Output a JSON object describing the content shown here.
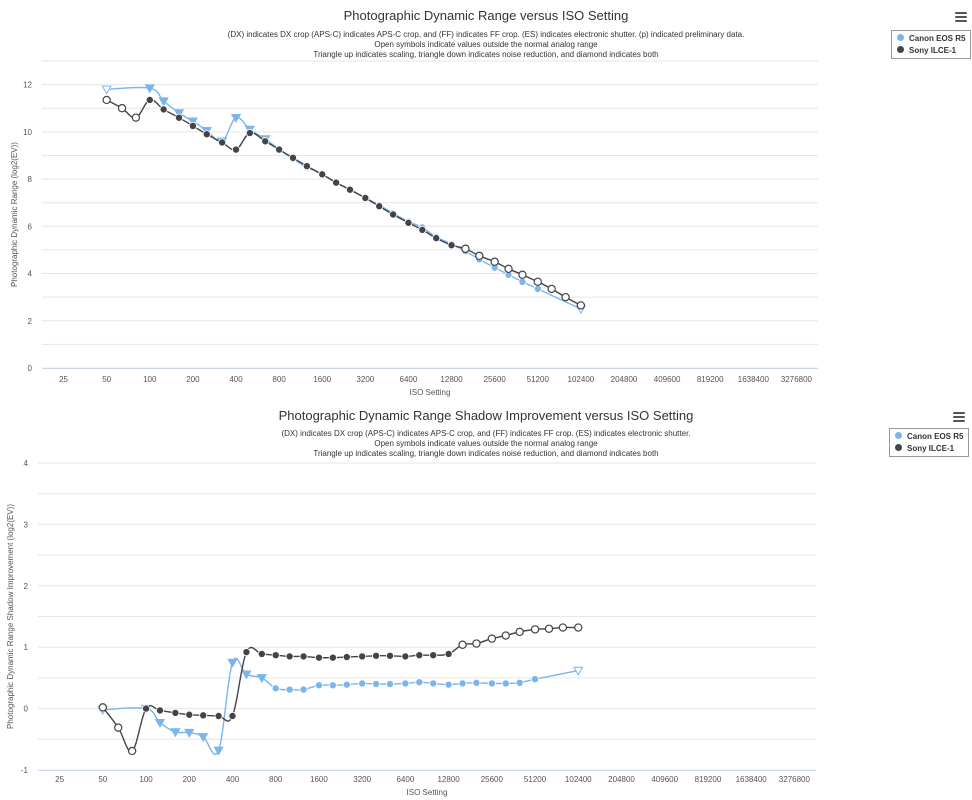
{
  "colors": {
    "canon": "#7cb5ec",
    "sony": "#434348",
    "grid": "#e6e6e6",
    "axis": "#ccd6eb"
  },
  "menu_icon": "hamburger-menu-icon",
  "chart_data": [
    {
      "type": "line",
      "title": "Photographic Dynamic Range versus ISO Setting",
      "subtitle": [
        "(DX) indicates DX crop (APS-C) indicates APS-C crop, and (FF) indicates FF crop. (ES) indicates electronic shutter. (p) indicated preliminary data.",
        "Open symbols indicate values outside the normal analog range",
        "Triangle up indicates scaling, triangle down indicates noise reduction, and diamond indicates both"
      ],
      "xlabel": "ISO Setting",
      "ylabel": "Photographic Dynamic Range (log2(EV))",
      "xscale": "log2",
      "x_ticks": [
        25,
        50,
        100,
        200,
        400,
        800,
        1600,
        3200,
        6400,
        12800,
        25600,
        51200,
        102400,
        204800,
        409600,
        819200,
        1638400,
        3276800
      ],
      "x_tick_labels": [
        "25",
        "50",
        "100",
        "200",
        "400",
        "800",
        "1600",
        "3200",
        "6400",
        "12800",
        "25600",
        "51200",
        "102400",
        "204800",
        "409600",
        "819200",
        "1638400",
        "3276800"
      ],
      "ylim": [
        0,
        13
      ],
      "y_ticks": [
        0,
        2,
        4,
        6,
        8,
        10,
        12
      ],
      "grid": true,
      "legend_position": "top-right",
      "series": [
        {
          "name": "Canon EOS R5",
          "color": "#7cb5ec",
          "points": [
            {
              "x": 50,
              "y": 11.8,
              "m": "tri-down-open"
            },
            {
              "x": 100,
              "y": 11.85,
              "m": "tri-down"
            },
            {
              "x": 125,
              "y": 11.3,
              "m": "tri-down"
            },
            {
              "x": 160,
              "y": 10.8,
              "m": "tri-down"
            },
            {
              "x": 200,
              "y": 10.45,
              "m": "tri-down"
            },
            {
              "x": 250,
              "y": 10.05,
              "m": "tri-down"
            },
            {
              "x": 320,
              "y": 9.6,
              "m": "tri-down"
            },
            {
              "x": 400,
              "y": 10.6,
              "m": "tri-down"
            },
            {
              "x": 500,
              "y": 10.1,
              "m": "tri-down"
            },
            {
              "x": 640,
              "y": 9.7,
              "m": "tri-down"
            },
            {
              "x": 800,
              "y": 9.25,
              "m": "circle"
            },
            {
              "x": 1000,
              "y": 8.85,
              "m": "circle"
            },
            {
              "x": 1250,
              "y": 8.5,
              "m": "circle"
            },
            {
              "x": 1600,
              "y": 8.2,
              "m": "circle"
            },
            {
              "x": 2000,
              "y": 7.85,
              "m": "circle"
            },
            {
              "x": 2500,
              "y": 7.55,
              "m": "circle"
            },
            {
              "x": 3200,
              "y": 7.2,
              "m": "circle"
            },
            {
              "x": 4000,
              "y": 6.9,
              "m": "circle"
            },
            {
              "x": 5000,
              "y": 6.55,
              "m": "circle"
            },
            {
              "x": 6400,
              "y": 6.2,
              "m": "circle"
            },
            {
              "x": 8000,
              "y": 5.95,
              "m": "circle"
            },
            {
              "x": 10000,
              "y": 5.55,
              "m": "circle"
            },
            {
              "x": 12800,
              "y": 5.25,
              "m": "circle"
            },
            {
              "x": 16000,
              "y": 4.95,
              "m": "circle"
            },
            {
              "x": 20000,
              "y": 4.6,
              "m": "circle"
            },
            {
              "x": 25600,
              "y": 4.25,
              "m": "circle"
            },
            {
              "x": 32000,
              "y": 3.95,
              "m": "circle"
            },
            {
              "x": 40000,
              "y": 3.65,
              "m": "circle"
            },
            {
              "x": 51200,
              "y": 3.35,
              "m": "circle"
            },
            {
              "x": 102400,
              "y": 2.5,
              "m": "tri-down-open"
            }
          ]
        },
        {
          "name": "Sony ILCE-1",
          "color": "#434348",
          "points": [
            {
              "x": 50,
              "y": 11.35,
              "m": "circle-open"
            },
            {
              "x": 64,
              "y": 11.0,
              "m": "circle-open"
            },
            {
              "x": 80,
              "y": 10.6,
              "m": "circle-open"
            },
            {
              "x": 100,
              "y": 11.35,
              "m": "circle"
            },
            {
              "x": 125,
              "y": 10.95,
              "m": "circle"
            },
            {
              "x": 160,
              "y": 10.6,
              "m": "circle"
            },
            {
              "x": 200,
              "y": 10.25,
              "m": "circle"
            },
            {
              "x": 250,
              "y": 9.9,
              "m": "circle"
            },
            {
              "x": 320,
              "y": 9.55,
              "m": "circle"
            },
            {
              "x": 400,
              "y": 9.25,
              "m": "circle"
            },
            {
              "x": 500,
              "y": 9.95,
              "m": "circle"
            },
            {
              "x": 640,
              "y": 9.6,
              "m": "circle"
            },
            {
              "x": 800,
              "y": 9.25,
              "m": "circle"
            },
            {
              "x": 1000,
              "y": 8.9,
              "m": "circle"
            },
            {
              "x": 1250,
              "y": 8.55,
              "m": "circle"
            },
            {
              "x": 1600,
              "y": 8.2,
              "m": "circle"
            },
            {
              "x": 2000,
              "y": 7.85,
              "m": "circle"
            },
            {
              "x": 2500,
              "y": 7.55,
              "m": "circle"
            },
            {
              "x": 3200,
              "y": 7.2,
              "m": "circle"
            },
            {
              "x": 4000,
              "y": 6.85,
              "m": "circle"
            },
            {
              "x": 5000,
              "y": 6.5,
              "m": "circle"
            },
            {
              "x": 6400,
              "y": 6.15,
              "m": "circle"
            },
            {
              "x": 8000,
              "y": 5.85,
              "m": "circle"
            },
            {
              "x": 10000,
              "y": 5.5,
              "m": "circle"
            },
            {
              "x": 12800,
              "y": 5.2,
              "m": "circle"
            },
            {
              "x": 16000,
              "y": 5.05,
              "m": "circle-open"
            },
            {
              "x": 20000,
              "y": 4.75,
              "m": "circle-open"
            },
            {
              "x": 25600,
              "y": 4.5,
              "m": "circle-open"
            },
            {
              "x": 32000,
              "y": 4.2,
              "m": "circle-open"
            },
            {
              "x": 40000,
              "y": 3.95,
              "m": "circle-open"
            },
            {
              "x": 51200,
              "y": 3.65,
              "m": "circle-open"
            },
            {
              "x": 64000,
              "y": 3.35,
              "m": "circle-open"
            },
            {
              "x": 80000,
              "y": 3.0,
              "m": "circle-open"
            },
            {
              "x": 102400,
              "y": 2.65,
              "m": "circle-open"
            }
          ]
        }
      ]
    },
    {
      "type": "line",
      "title": "Photographic Dynamic Range Shadow Improvement versus ISO Setting",
      "subtitle": [
        "(DX) indicates DX crop (APS-C) indicates APS-C crop, and (FF) indicates FF crop. (ES) indicates electronic shutter.",
        "Open symbols indicate values outside the normal analog range",
        "Triangle up indicates scaling, triangle down indicates noise reduction, and diamond indicates both"
      ],
      "xlabel": "ISO Setting",
      "ylabel": "Photographic Dynamic Range Shadow Improvement (log2(EV))",
      "xscale": "log2",
      "x_ticks": [
        25,
        50,
        100,
        200,
        400,
        800,
        1600,
        3200,
        6400,
        12800,
        25600,
        51200,
        102400,
        204800,
        409600,
        819200,
        1638400,
        3276800
      ],
      "x_tick_labels": [
        "25",
        "50",
        "100",
        "200",
        "400",
        "800",
        "1600",
        "3200",
        "6400",
        "12800",
        "25600",
        "51200",
        "102400",
        "204800",
        "409600",
        "819200",
        "1638400",
        "3276800"
      ],
      "ylim": [
        -1,
        4
      ],
      "y_ticks": [
        -1,
        0,
        1,
        2,
        3,
        4
      ],
      "grid": true,
      "legend_position": "top-right",
      "series": [
        {
          "name": "Canon EOS R5",
          "color": "#7cb5ec",
          "points": [
            {
              "x": 50,
              "y": -0.02,
              "m": "tri-down-open"
            },
            {
              "x": 100,
              "y": 0.0,
              "m": "tri-down"
            },
            {
              "x": 125,
              "y": -0.23,
              "m": "tri-down"
            },
            {
              "x": 160,
              "y": -0.38,
              "m": "tri-down"
            },
            {
              "x": 200,
              "y": -0.39,
              "m": "tri-down"
            },
            {
              "x": 250,
              "y": -0.46,
              "m": "tri-down"
            },
            {
              "x": 320,
              "y": -0.68,
              "m": "tri-down"
            },
            {
              "x": 400,
              "y": 0.75,
              "m": "tri-down"
            },
            {
              "x": 500,
              "y": 0.56,
              "m": "tri-down"
            },
            {
              "x": 640,
              "y": 0.5,
              "m": "tri-down"
            },
            {
              "x": 800,
              "y": 0.33,
              "m": "circle"
            },
            {
              "x": 1000,
              "y": 0.31,
              "m": "circle"
            },
            {
              "x": 1250,
              "y": 0.31,
              "m": "circle"
            },
            {
              "x": 1600,
              "y": 0.38,
              "m": "circle"
            },
            {
              "x": 2000,
              "y": 0.38,
              "m": "circle"
            },
            {
              "x": 2500,
              "y": 0.39,
              "m": "circle"
            },
            {
              "x": 3200,
              "y": 0.41,
              "m": "circle"
            },
            {
              "x": 4000,
              "y": 0.4,
              "m": "circle"
            },
            {
              "x": 5000,
              "y": 0.4,
              "m": "circle"
            },
            {
              "x": 6400,
              "y": 0.41,
              "m": "circle"
            },
            {
              "x": 8000,
              "y": 0.43,
              "m": "circle"
            },
            {
              "x": 10000,
              "y": 0.41,
              "m": "circle"
            },
            {
              "x": 12800,
              "y": 0.39,
              "m": "circle"
            },
            {
              "x": 16000,
              "y": 0.41,
              "m": "circle"
            },
            {
              "x": 20000,
              "y": 0.42,
              "m": "circle"
            },
            {
              "x": 25600,
              "y": 0.41,
              "m": "circle"
            },
            {
              "x": 32000,
              "y": 0.41,
              "m": "circle"
            },
            {
              "x": 40000,
              "y": 0.42,
              "m": "circle"
            },
            {
              "x": 51200,
              "y": 0.48,
              "m": "circle"
            },
            {
              "x": 102400,
              "y": 0.62,
              "m": "tri-down-open"
            }
          ]
        },
        {
          "name": "Sony ILCE-1",
          "color": "#434348",
          "points": [
            {
              "x": 50,
              "y": 0.02,
              "m": "circle-open"
            },
            {
              "x": 64,
              "y": -0.31,
              "m": "circle-open"
            },
            {
              "x": 80,
              "y": -0.69,
              "m": "circle-open"
            },
            {
              "x": 100,
              "y": 0.0,
              "m": "circle"
            },
            {
              "x": 125,
              "y": -0.03,
              "m": "circle"
            },
            {
              "x": 160,
              "y": -0.07,
              "m": "circle"
            },
            {
              "x": 200,
              "y": -0.1,
              "m": "circle"
            },
            {
              "x": 250,
              "y": -0.11,
              "m": "circle"
            },
            {
              "x": 320,
              "y": -0.12,
              "m": "circle"
            },
            {
              "x": 400,
              "y": -0.12,
              "m": "circle"
            },
            {
              "x": 500,
              "y": 0.92,
              "m": "circle"
            },
            {
              "x": 640,
              "y": 0.89,
              "m": "circle"
            },
            {
              "x": 800,
              "y": 0.87,
              "m": "circle"
            },
            {
              "x": 1000,
              "y": 0.85,
              "m": "circle"
            },
            {
              "x": 1250,
              "y": 0.85,
              "m": "circle"
            },
            {
              "x": 1600,
              "y": 0.83,
              "m": "circle"
            },
            {
              "x": 2000,
              "y": 0.83,
              "m": "circle"
            },
            {
              "x": 2500,
              "y": 0.84,
              "m": "circle"
            },
            {
              "x": 3200,
              "y": 0.85,
              "m": "circle"
            },
            {
              "x": 4000,
              "y": 0.86,
              "m": "circle"
            },
            {
              "x": 5000,
              "y": 0.86,
              "m": "circle"
            },
            {
              "x": 6400,
              "y": 0.85,
              "m": "circle"
            },
            {
              "x": 8000,
              "y": 0.87,
              "m": "circle"
            },
            {
              "x": 10000,
              "y": 0.87,
              "m": "circle"
            },
            {
              "x": 12800,
              "y": 0.89,
              "m": "circle"
            },
            {
              "x": 16000,
              "y": 1.04,
              "m": "circle-open"
            },
            {
              "x": 20000,
              "y": 1.06,
              "m": "circle-open"
            },
            {
              "x": 25600,
              "y": 1.14,
              "m": "circle-open"
            },
            {
              "x": 32000,
              "y": 1.19,
              "m": "circle-open"
            },
            {
              "x": 40000,
              "y": 1.25,
              "m": "circle-open"
            },
            {
              "x": 51200,
              "y": 1.29,
              "m": "circle-open"
            },
            {
              "x": 64000,
              "y": 1.3,
              "m": "circle-open"
            },
            {
              "x": 80000,
              "y": 1.32,
              "m": "circle-open"
            },
            {
              "x": 102400,
              "y": 1.32,
              "m": "circle-open"
            }
          ]
        }
      ]
    }
  ]
}
